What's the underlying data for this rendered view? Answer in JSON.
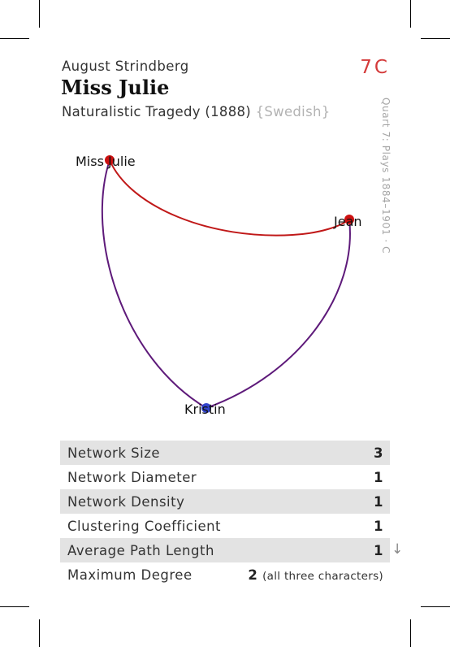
{
  "header": {
    "author": "August Strindberg",
    "title": "Miss Julie",
    "genre_year": "Naturalistic Tragedy (1888)",
    "language": "{Swedish}",
    "code": "7C",
    "side_label": "Quart 7: Plays 1884–1901 · C"
  },
  "network": {
    "nodes": [
      {
        "id": "julie",
        "label": "Miss Julie",
        "color": "#cc1111"
      },
      {
        "id": "jean",
        "label": "Jean",
        "color": "#cc1111"
      },
      {
        "id": "kristin",
        "label": "Kristin",
        "color": "#3344cc"
      }
    ],
    "edge_colors": {
      "julie_jean": "#c01818",
      "with_kristin": "#5e1a7a"
    }
  },
  "stats": [
    {
      "label": "Network Size",
      "value": "3"
    },
    {
      "label": "Network Diameter",
      "value": "1"
    },
    {
      "label": "Network Density",
      "value": "1"
    },
    {
      "label": "Clustering Coefficient",
      "value": "1"
    },
    {
      "label": "Average Path Length",
      "value": "1"
    },
    {
      "label": "Maximum Degree",
      "value": "2",
      "note": "(all three characters)"
    }
  ],
  "arrow_icon": "arrow-down-icon"
}
